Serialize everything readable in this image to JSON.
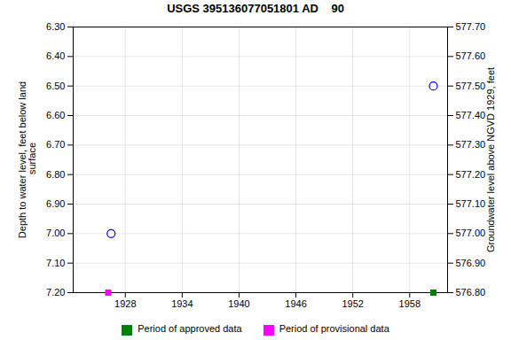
{
  "chart_data": {
    "type": "scatter",
    "title": "USGS 395136077051801 AD    90",
    "ylabel": "Depth to water level, feet below land\n surface",
    "y2label": "Groundwater level above NGVD 1929, feet",
    "xlim": [
      1922.5,
      1962.0
    ],
    "ylim": [
      7.2,
      6.3
    ],
    "y2lim": [
      576.8,
      577.7
    ],
    "xticks": [
      1928,
      1934,
      1940,
      1946,
      1952,
      1958
    ],
    "yticks": [
      {
        "value": 6.3,
        "label": "6.30"
      },
      {
        "value": 6.4,
        "label": "6.40"
      },
      {
        "value": 6.5,
        "label": "6.50"
      },
      {
        "value": 6.6,
        "label": "6.60"
      },
      {
        "value": 6.7,
        "label": "6.70"
      },
      {
        "value": 6.8,
        "label": "6.80"
      },
      {
        "value": 6.9,
        "label": "6.90"
      },
      {
        "value": 7.0,
        "label": "7.00"
      },
      {
        "value": 7.1,
        "label": "7.10"
      },
      {
        "value": 7.2,
        "label": "7.20"
      }
    ],
    "y2ticks": [
      {
        "value": 576.8,
        "label": "576.80"
      },
      {
        "value": 576.9,
        "label": "576.90"
      },
      {
        "value": 577.0,
        "label": "577.00"
      },
      {
        "value": 577.1,
        "label": "577.10"
      },
      {
        "value": 577.2,
        "label": "577.20"
      },
      {
        "value": 577.3,
        "label": "577.30"
      },
      {
        "value": 577.4,
        "label": "577.40"
      },
      {
        "value": 577.5,
        "label": "577.50"
      },
      {
        "value": 577.6,
        "label": "577.60"
      },
      {
        "value": 577.7,
        "label": "577.70"
      }
    ],
    "grid": true,
    "legend": "bottom",
    "series": [
      {
        "color": "#0000ff",
        "marker": "open_circle",
        "x": [
          1926.5,
          1960.5
        ],
        "values": [
          7.0,
          6.5
        ]
      },
      {
        "name": "Period of approved data",
        "color": "#008000",
        "marker": "square",
        "x": [
          1960.5
        ],
        "values": [
          7.2
        ]
      },
      {
        "name": "Period of provisional data",
        "color": "#ff00ff",
        "marker": "square",
        "x": [
          1926.2
        ],
        "values": [
          7.2
        ]
      }
    ]
  }
}
